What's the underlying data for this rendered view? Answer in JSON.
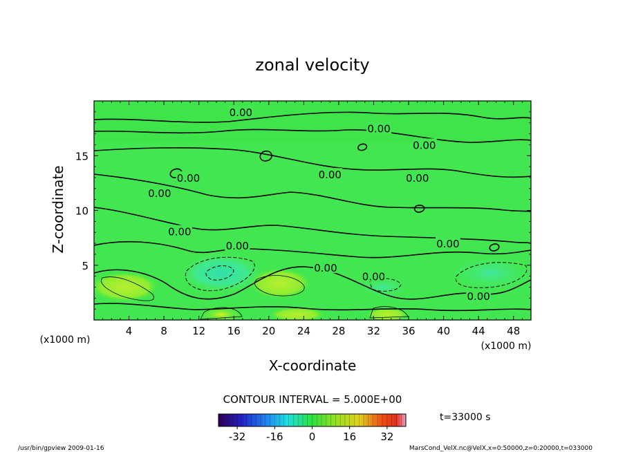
{
  "chart_data": {
    "type": "heatmap",
    "title": "zonal velocity",
    "xlabel": "X-coordinate",
    "ylabel": "Z-coordinate",
    "x_unit_label": "(x1000 m)",
    "y_unit_label": "(x1000 m)",
    "xlim": [
      0,
      50
    ],
    "ylim": [
      0,
      20
    ],
    "x_ticks": [
      4,
      8,
      12,
      16,
      20,
      24,
      28,
      32,
      36,
      40,
      44,
      48
    ],
    "y_ticks": [
      5,
      10,
      15
    ],
    "contour_interval_text": "CONTOUR INTERVAL = 5.000E+00",
    "contour_labels": [
      {
        "text": "0.00",
        "x": 16.8,
        "y": 19.0
      },
      {
        "text": "0.00",
        "x": 32.6,
        "y": 17.5
      },
      {
        "text": "0.00",
        "x": 37.8,
        "y": 16.0
      },
      {
        "text": "0.00",
        "x": 27.0,
        "y": 13.3
      },
      {
        "text": "0.00",
        "x": 37.0,
        "y": 13.0
      },
      {
        "text": "0.00",
        "x": 10.8,
        "y": 13.0
      },
      {
        "text": "0.00",
        "x": 7.5,
        "y": 11.6
      },
      {
        "text": "0.00",
        "x": 9.8,
        "y": 8.1
      },
      {
        "text": "0.00",
        "x": 16.4,
        "y": 6.8
      },
      {
        "text": "0.00",
        "x": 40.5,
        "y": 7.0
      },
      {
        "text": "0.00",
        "x": 26.5,
        "y": 4.8
      },
      {
        "text": "0.00",
        "x": 32.0,
        "y": 4.0
      },
      {
        "text": "0.00",
        "x": 44.0,
        "y": 2.2
      }
    ],
    "colorbar": {
      "ticks": [
        "-32",
        "-16",
        "0",
        "16",
        "32"
      ],
      "range": [
        -40,
        40
      ]
    },
    "time_label": "t=33000 s"
  },
  "footer": {
    "program": "/usr/bin/gpview   2009-01-16",
    "source": "MarsCond_VelX.nc@VelX,x=0:50000,z=0:20000,t=033000"
  }
}
